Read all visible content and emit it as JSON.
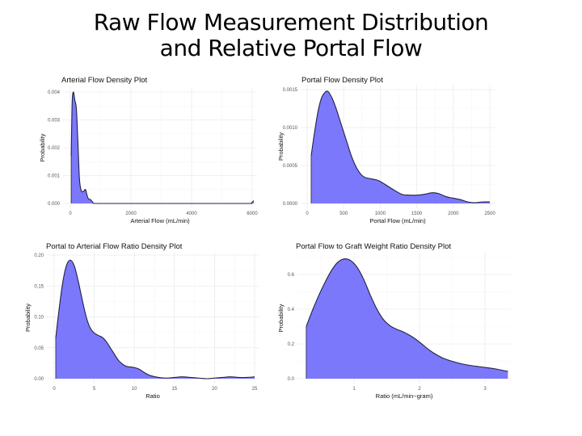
{
  "title": {
    "line1": "Raw Flow Measurement Distribution",
    "line2": "and Relative Portal Flow"
  },
  "colors": {
    "fill": "#7b78fb",
    "line": "#222244"
  },
  "chart_data": [
    {
      "type": "area",
      "title": "Arterial Flow Density Plot",
      "xlabel": "Arterial Flow (mL/min)",
      "ylabel": "Probability",
      "xlim": [
        0,
        6000
      ],
      "ylim": [
        0,
        0.004
      ],
      "xticks": [
        0,
        2000,
        4000,
        6000
      ],
      "xtick_labels": [
        "0",
        "2000",
        "4000",
        "6000"
      ],
      "yticks": [
        0,
        0.001,
        0.002,
        0.003,
        0.004
      ],
      "ytick_labels": [
        "0.000",
        "0.001",
        "0.002",
        "0.003",
        "0.004"
      ],
      "x": [
        30,
        60,
        100,
        150,
        200,
        250,
        300,
        350,
        400,
        450,
        500,
        550,
        600,
        650,
        700,
        750,
        800,
        1000,
        2000,
        3000,
        4000,
        5000,
        5900,
        5980,
        6050
      ],
      "y": [
        0.0017,
        0.0036,
        0.004,
        0.0037,
        0.0034,
        0.0022,
        0.0009,
        0.0005,
        0.00042,
        0.00045,
        0.0005,
        0.0003,
        0.00016,
        0.00015,
        0.0001,
        2e-05,
        0.0,
        0.0,
        0.0,
        0.0,
        0.0,
        0.0,
        0.0,
        2e-05,
        0.0001
      ]
    },
    {
      "type": "area",
      "title": "Portal Flow Density Plot",
      "xlabel": "Portal Flow (mL/min)",
      "ylabel": "Probability",
      "xlim": [
        0,
        2500
      ],
      "ylim": [
        0,
        0.0015
      ],
      "xticks": [
        0,
        500,
        1000,
        1500,
        2000,
        2500
      ],
      "xtick_labels": [
        "0",
        "500",
        "1000",
        "1500",
        "2000",
        "2500"
      ],
      "yticks": [
        0,
        0.0005,
        0.001,
        0.0015
      ],
      "ytick_labels": [
        "0.0000",
        "0.0005",
        "0.0010",
        "0.0015"
      ],
      "x": [
        55,
        100,
        150,
        200,
        250,
        275,
        300,
        350,
        400,
        450,
        500,
        550,
        600,
        650,
        700,
        750,
        800,
        850,
        900,
        950,
        1000,
        1100,
        1200,
        1300,
        1400,
        1500,
        1600,
        1700,
        1750,
        1800,
        1900,
        2000,
        2100,
        2200,
        2300,
        2400,
        2500
      ],
      "y": [
        0.00063,
        0.00093,
        0.00122,
        0.0014,
        0.00147,
        0.00148,
        0.00146,
        0.00137,
        0.00124,
        0.00109,
        0.00094,
        0.00079,
        0.00064,
        0.00052,
        0.00043,
        0.00037,
        0.00034,
        0.00033,
        0.00032,
        0.00031,
        0.00029,
        0.00023,
        0.00017,
        0.00012,
        0.00011,
        0.00011,
        0.00012,
        0.00014,
        0.00014,
        0.00013,
        9e-05,
        7e-05,
        5e-05,
        2e-05,
        1e-05,
        2e-05,
        2e-05
      ]
    },
    {
      "type": "area",
      "title": "Portal to Arterial Flow Ratio Density Plot",
      "xlabel": "Ratio",
      "ylabel": "Probability",
      "xlim": [
        0,
        25
      ],
      "ylim": [
        0,
        0.2
      ],
      "xticks": [
        0,
        5,
        10,
        15,
        20,
        25
      ],
      "xtick_labels": [
        "0",
        "5",
        "10",
        "15",
        "20",
        "25"
      ],
      "yticks": [
        0,
        0.05,
        0.1,
        0.15,
        0.2
      ],
      "ytick_labels": [
        "0.00",
        "0.05",
        "0.10",
        "0.15",
        "0.20"
      ],
      "x": [
        0.2,
        0.5,
        1,
        1.5,
        2,
        2.5,
        3,
        3.5,
        4,
        4.5,
        5,
        5.5,
        6,
        6.5,
        7,
        7.5,
        8,
        8.5,
        9,
        9.5,
        10,
        10.5,
        11,
        11.5,
        12,
        13,
        14,
        15,
        16,
        17,
        18,
        19,
        20,
        21,
        22,
        23,
        24,
        25
      ],
      "y": [
        0.066,
        0.1,
        0.15,
        0.182,
        0.192,
        0.183,
        0.158,
        0.128,
        0.1,
        0.082,
        0.074,
        0.07,
        0.067,
        0.06,
        0.05,
        0.04,
        0.03,
        0.024,
        0.02,
        0.019,
        0.018,
        0.016,
        0.012,
        0.008,
        0.005,
        0.002,
        0.001,
        0.002,
        0.003,
        0.002,
        0.001,
        0.0,
        0.001,
        0.002,
        0.003,
        0.002,
        0.002,
        0.003
      ]
    },
    {
      "type": "area",
      "title": "Portal Flow to Graft Weight Ratio Density Plot",
      "xlabel": "Ratio (mL/min−gram)",
      "ylabel": "Probability",
      "xlim": [
        0.27,
        3.35
      ],
      "ylim": [
        0,
        0.7
      ],
      "xticks": [
        1,
        2,
        3
      ],
      "xtick_labels": [
        "1",
        "2",
        "3"
      ],
      "yticks": [
        0,
        0.2,
        0.4,
        0.6
      ],
      "ytick_labels": [
        "0.0",
        "0.2",
        "0.4",
        "0.6"
      ],
      "x": [
        0.27,
        0.35,
        0.45,
        0.55,
        0.65,
        0.75,
        0.85,
        0.95,
        1.05,
        1.15,
        1.25,
        1.35,
        1.45,
        1.55,
        1.65,
        1.75,
        1.85,
        1.95,
        2.05,
        2.15,
        2.25,
        2.35,
        2.5,
        2.65,
        2.8,
        3.0,
        3.15,
        3.35
      ],
      "y": [
        0.3,
        0.38,
        0.47,
        0.55,
        0.62,
        0.67,
        0.69,
        0.68,
        0.64,
        0.57,
        0.48,
        0.4,
        0.34,
        0.305,
        0.285,
        0.27,
        0.25,
        0.225,
        0.195,
        0.165,
        0.14,
        0.12,
        0.1,
        0.085,
        0.075,
        0.065,
        0.057,
        0.042
      ]
    }
  ]
}
